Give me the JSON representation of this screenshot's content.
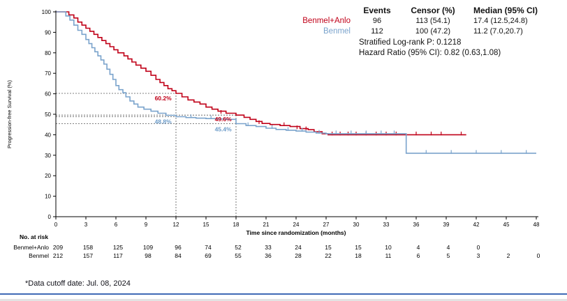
{
  "stats": {
    "headers": [
      "Events",
      "Censor (%)",
      "Median (95% CI)"
    ],
    "rows": [
      {
        "label": "Benmel+Anlo",
        "events": "96",
        "censor": "113 (54.1)",
        "median": "17.4 (12.5,24.8)",
        "color": "#c00018"
      },
      {
        "label": "Benmel",
        "events": "112",
        "censor": "100 (47.2)",
        "median": "11.2 (7.0,20.7)",
        "color": "#7aa3cc"
      }
    ],
    "logrank": "Stratified Log-rank P: 0.1218",
    "hazard": "Hazard Ratio (95% CI): 0.82 (0.63,1.08)"
  },
  "chart_data": {
    "type": "line",
    "subtype": "kaplan-meier",
    "xlabel": "Time since randomization (months)",
    "ylabel": "Progression-free Survival (%)",
    "xlim": [
      0,
      48
    ],
    "ylim": [
      0,
      100
    ],
    "xticks": [
      0,
      3,
      6,
      9,
      12,
      15,
      18,
      21,
      24,
      27,
      30,
      33,
      36,
      39,
      42,
      45,
      48
    ],
    "yticks": [
      0,
      10,
      20,
      30,
      40,
      50,
      60,
      70,
      80,
      90,
      100
    ],
    "series": [
      {
        "name": "Benmel+Anlo",
        "color": "#c00018",
        "steps": [
          [
            0,
            100
          ],
          [
            1.3,
            98.5
          ],
          [
            1.8,
            97
          ],
          [
            2.2,
            95
          ],
          [
            2.6,
            93.5
          ],
          [
            3,
            92
          ],
          [
            3.4,
            90.5
          ],
          [
            3.8,
            89
          ],
          [
            4.2,
            87.5
          ],
          [
            4.6,
            86
          ],
          [
            5,
            84.5
          ],
          [
            5.4,
            83
          ],
          [
            5.8,
            81.5
          ],
          [
            6.2,
            80
          ],
          [
            6.8,
            78.5
          ],
          [
            7.2,
            77
          ],
          [
            7.6,
            75.5
          ],
          [
            8,
            74
          ],
          [
            8.5,
            72.5
          ],
          [
            9,
            71
          ],
          [
            9.5,
            69
          ],
          [
            10,
            67
          ],
          [
            10.4,
            65.5
          ],
          [
            10.8,
            64
          ],
          [
            11.2,
            62.5
          ],
          [
            11.6,
            61.5
          ],
          [
            12,
            60.2
          ],
          [
            12.6,
            58.5
          ],
          [
            13.2,
            57
          ],
          [
            13.8,
            56
          ],
          [
            14.4,
            55
          ],
          [
            15,
            53.5
          ],
          [
            15.6,
            52.5
          ],
          [
            16.2,
            51.5
          ],
          [
            17,
            50.5
          ],
          [
            18,
            49.6
          ],
          [
            18.8,
            48.5
          ],
          [
            19.4,
            47.5
          ],
          [
            20,
            46.5
          ],
          [
            20.6,
            45.5
          ],
          [
            21.4,
            45
          ],
          [
            22.4,
            44.5
          ],
          [
            23.4,
            44
          ],
          [
            24.4,
            43
          ],
          [
            25.2,
            42.5
          ],
          [
            25.8,
            41.5
          ],
          [
            26.6,
            40.5
          ],
          [
            27.2,
            40
          ],
          [
            41,
            40
          ]
        ],
        "censors": [
          [
            16.5,
            50.5
          ],
          [
            20.3,
            45.5
          ],
          [
            22.8,
            44.5
          ],
          [
            24.1,
            43
          ],
          [
            25,
            42.5
          ],
          [
            27.6,
            40
          ],
          [
            28.4,
            40
          ],
          [
            29.2,
            40
          ],
          [
            30,
            40
          ],
          [
            31,
            40
          ],
          [
            32,
            40
          ],
          [
            33,
            40
          ],
          [
            34,
            40
          ],
          [
            36,
            40
          ],
          [
            37.5,
            40
          ],
          [
            38.5,
            40
          ],
          [
            40.5,
            40
          ]
        ]
      },
      {
        "name": "Benmel",
        "color": "#7aa3cc",
        "steps": [
          [
            0,
            100
          ],
          [
            1,
            98
          ],
          [
            1.4,
            96
          ],
          [
            1.8,
            93.5
          ],
          [
            2.2,
            91
          ],
          [
            2.6,
            89
          ],
          [
            3,
            86.5
          ],
          [
            3.3,
            84.5
          ],
          [
            3.6,
            82.5
          ],
          [
            3.9,
            80.5
          ],
          [
            4.2,
            78.5
          ],
          [
            4.5,
            76.5
          ],
          [
            4.8,
            74.5
          ],
          [
            5.1,
            72
          ],
          [
            5.4,
            69.5
          ],
          [
            5.7,
            67
          ],
          [
            6,
            64
          ],
          [
            6.3,
            62
          ],
          [
            6.7,
            60.5
          ],
          [
            7,
            58.5
          ],
          [
            7.4,
            56.5
          ],
          [
            7.8,
            55
          ],
          [
            8.2,
            53.5
          ],
          [
            8.8,
            52.5
          ],
          [
            9.5,
            51.5
          ],
          [
            10.2,
            50.5
          ],
          [
            11,
            49.5
          ],
          [
            12,
            48.8
          ],
          [
            13,
            48.4
          ],
          [
            14,
            48.1
          ],
          [
            15,
            47.9
          ],
          [
            16,
            47.7
          ],
          [
            17,
            47.5
          ],
          [
            18,
            45.4
          ],
          [
            19,
            44.5
          ],
          [
            20,
            44
          ],
          [
            21,
            43.2
          ],
          [
            22,
            42.6
          ],
          [
            23,
            42.2
          ],
          [
            24,
            41.8
          ],
          [
            25,
            41.3
          ],
          [
            26,
            40.8
          ],
          [
            27,
            40.5
          ],
          [
            34.8,
            40.5
          ],
          [
            35,
            31
          ],
          [
            48,
            31
          ]
        ],
        "censors": [
          [
            13.5,
            48.4
          ],
          [
            15.5,
            47.9
          ],
          [
            19.2,
            44.5
          ],
          [
            21.6,
            43.2
          ],
          [
            23.2,
            42.2
          ],
          [
            24.6,
            41.8
          ],
          [
            26.3,
            40.8
          ],
          [
            28,
            40.5
          ],
          [
            29.5,
            40.5
          ],
          [
            31,
            40.5
          ],
          [
            32.5,
            40.5
          ],
          [
            33.8,
            40.5
          ],
          [
            37,
            31
          ],
          [
            39.5,
            31
          ],
          [
            42,
            31
          ],
          [
            44.5,
            31
          ],
          [
            47,
            31
          ]
        ]
      }
    ],
    "reference_lines": [
      {
        "type": "h",
        "y": 60.2,
        "x_end": 12
      },
      {
        "type": "h",
        "y": 48.8,
        "x_end": 12
      },
      {
        "type": "h",
        "y": 49.6,
        "x_end": 18
      },
      {
        "type": "h",
        "y": 45.4,
        "x_end": 18
      },
      {
        "type": "v",
        "x": 12,
        "y_end": 60.2
      },
      {
        "type": "v",
        "x": 18,
        "y_end": 49.6
      }
    ],
    "annotations": [
      {
        "text": "60.2%",
        "x": 11.7,
        "y": 60.2,
        "dy": 10,
        "color": "#c00018"
      },
      {
        "text": "48.8%",
        "x": 11.7,
        "y": 48.8,
        "dy": 10,
        "color": "#6d9cc9"
      },
      {
        "text": "49.6%",
        "x": 17.7,
        "y": 49.6,
        "dy": 9,
        "color": "#c00018"
      },
      {
        "text": "45.4%",
        "x": 17.7,
        "y": 45.4,
        "dy": 11,
        "color": "#6d9cc9"
      }
    ]
  },
  "risk_table": {
    "title": "No. at risk",
    "rows": [
      {
        "label": "Benmel+Anlo",
        "values": [
          "209",
          "158",
          "125",
          "109",
          "96",
          "74",
          "52",
          "33",
          "24",
          "15",
          "15",
          "10",
          "4",
          "4",
          "0"
        ]
      },
      {
        "label": "Benmel",
        "values": [
          "212",
          "157",
          "117",
          "98",
          "84",
          "69",
          "55",
          "36",
          "28",
          "22",
          "18",
          "11",
          "6",
          "5",
          "3",
          "2",
          "0"
        ]
      }
    ]
  },
  "footnote": "*Data cutoff  date: Jul. 08, 2024"
}
